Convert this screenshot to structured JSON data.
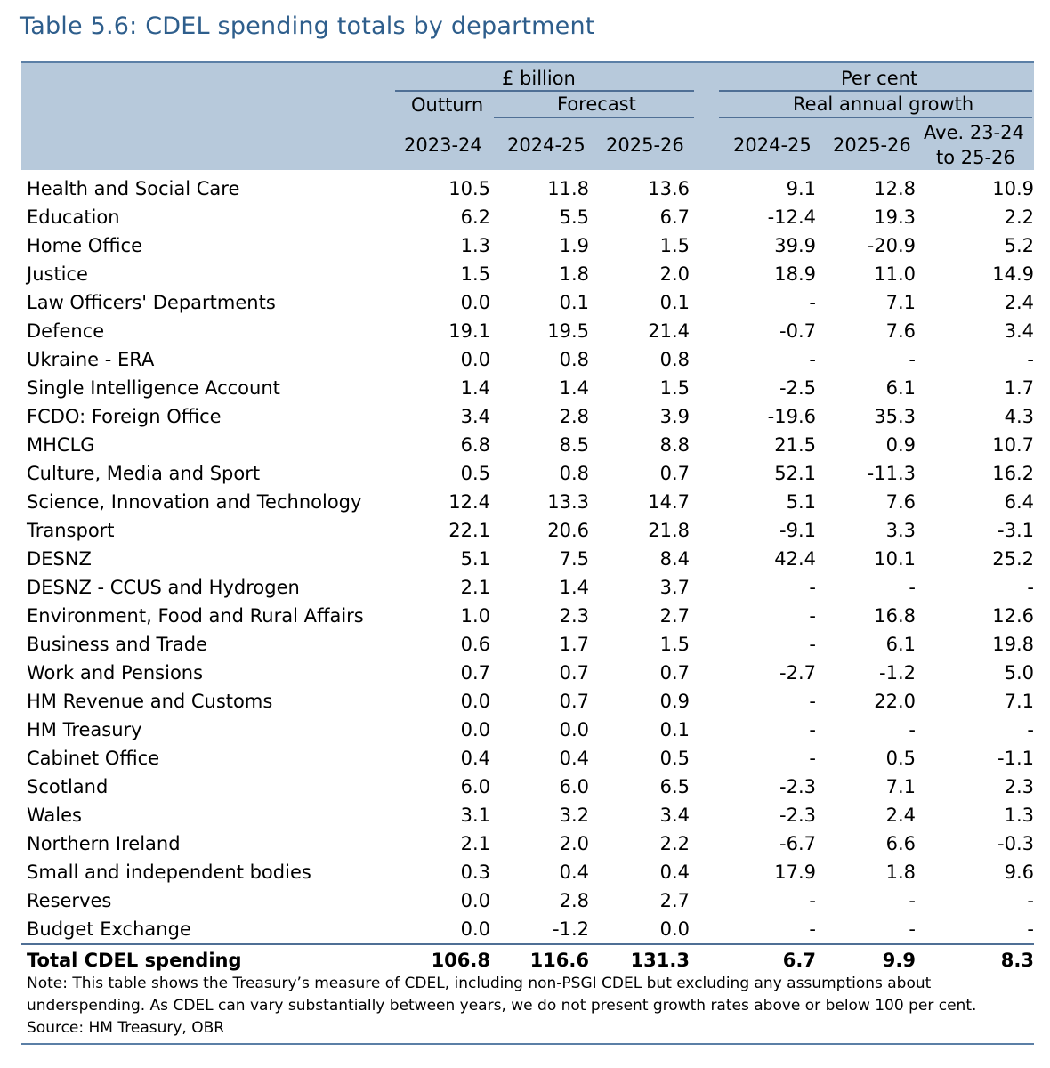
{
  "title": "Table 5.6: CDEL spending totals by department",
  "header": {
    "billion_label": "£ billion",
    "percent_label": "Per cent",
    "outturn_label": "Outturn",
    "forecast_label": "Forecast",
    "real_growth_label": "Real annual growth",
    "col1": "2023-24",
    "col2": "2024-25",
    "col3": "2025-26",
    "col4": "2024-25",
    "col5": "2025-26",
    "col6_line1": "Ave. 23-24",
    "col6_line2": "to 25-26"
  },
  "rows": [
    {
      "dept": "Health and Social Care",
      "v": [
        "10.5",
        "11.8",
        "13.6",
        "9.1",
        "12.8",
        "10.9"
      ]
    },
    {
      "dept": "Education",
      "v": [
        "6.2",
        "5.5",
        "6.7",
        "-12.4",
        "19.3",
        "2.2"
      ]
    },
    {
      "dept": "Home Office",
      "v": [
        "1.3",
        "1.9",
        "1.5",
        "39.9",
        "-20.9",
        "5.2"
      ]
    },
    {
      "dept": "Justice",
      "v": [
        "1.5",
        "1.8",
        "2.0",
        "18.9",
        "11.0",
        "14.9"
      ]
    },
    {
      "dept": "Law Officers' Departments",
      "v": [
        "0.0",
        "0.1",
        "0.1",
        "-",
        "7.1",
        "2.4"
      ]
    },
    {
      "dept": "Defence",
      "v": [
        "19.1",
        "19.5",
        "21.4",
        "-0.7",
        "7.6",
        "3.4"
      ]
    },
    {
      "dept": "Ukraine - ERA",
      "v": [
        "0.0",
        "0.8",
        "0.8",
        "-",
        "-",
        "-"
      ]
    },
    {
      "dept": "Single Intelligence Account",
      "v": [
        "1.4",
        "1.4",
        "1.5",
        "-2.5",
        "6.1",
        "1.7"
      ]
    },
    {
      "dept": "FCDO: Foreign Office",
      "v": [
        "3.4",
        "2.8",
        "3.9",
        "-19.6",
        "35.3",
        "4.3"
      ]
    },
    {
      "dept": "MHCLG",
      "v": [
        "6.8",
        "8.5",
        "8.8",
        "21.5",
        "0.9",
        "10.7"
      ]
    },
    {
      "dept": "Culture, Media and Sport",
      "v": [
        "0.5",
        "0.8",
        "0.7",
        "52.1",
        "-11.3",
        "16.2"
      ]
    },
    {
      "dept": "Science, Innovation and Technology",
      "v": [
        "12.4",
        "13.3",
        "14.7",
        "5.1",
        "7.6",
        "6.4"
      ]
    },
    {
      "dept": "Transport",
      "v": [
        "22.1",
        "20.6",
        "21.8",
        "-9.1",
        "3.3",
        "-3.1"
      ]
    },
    {
      "dept": "DESNZ",
      "v": [
        "5.1",
        "7.5",
        "8.4",
        "42.4",
        "10.1",
        "25.2"
      ]
    },
    {
      "dept": "DESNZ - CCUS and Hydrogen",
      "v": [
        "2.1",
        "1.4",
        "3.7",
        "-",
        "-",
        "-"
      ]
    },
    {
      "dept": "Environment, Food and Rural Affairs",
      "v": [
        "1.0",
        "2.3",
        "2.7",
        "-",
        "16.8",
        "12.6"
      ]
    },
    {
      "dept": "Business and Trade",
      "v": [
        "0.6",
        "1.7",
        "1.5",
        "-",
        "6.1",
        "19.8"
      ]
    },
    {
      "dept": "Work and Pensions",
      "v": [
        "0.7",
        "0.7",
        "0.7",
        "-2.7",
        "-1.2",
        "5.0"
      ]
    },
    {
      "dept": "HM Revenue and Customs",
      "v": [
        "0.0",
        "0.7",
        "0.9",
        "-",
        "22.0",
        "7.1"
      ]
    },
    {
      "dept": "HM Treasury",
      "v": [
        "0.0",
        "0.0",
        "0.1",
        "-",
        "-",
        "-"
      ]
    },
    {
      "dept": "Cabinet Office",
      "v": [
        "0.4",
        "0.4",
        "0.5",
        "-",
        "0.5",
        "-1.1"
      ]
    },
    {
      "dept": "Scotland",
      "v": [
        "6.0",
        "6.0",
        "6.5",
        "-2.3",
        "7.1",
        "2.3"
      ]
    },
    {
      "dept": "Wales",
      "v": [
        "3.1",
        "3.2",
        "3.4",
        "-2.3",
        "2.4",
        "1.3"
      ]
    },
    {
      "dept": "Northern Ireland",
      "v": [
        "2.1",
        "2.0",
        "2.2",
        "-6.7",
        "6.6",
        "-0.3"
      ]
    },
    {
      "dept": "Small and independent bodies",
      "v": [
        "0.3",
        "0.4",
        "0.4",
        "17.9",
        "1.8",
        "9.6"
      ]
    },
    {
      "dept": "Reserves",
      "v": [
        "0.0",
        "2.8",
        "2.7",
        "-",
        "-",
        "-"
      ]
    },
    {
      "dept": "Budget Exchange",
      "v": [
        "0.0",
        "-1.2",
        "0.0",
        "-",
        "-",
        "-"
      ]
    }
  ],
  "total": {
    "dept": "Total CDEL spending",
    "v": [
      "106.8",
      "116.6",
      "131.3",
      "6.7",
      "9.9",
      "8.3"
    ]
  },
  "note": {
    "line1": "Note: This table shows the Treasury’s measure of CDEL, including non-PSGI CDEL but excluding any assumptions about",
    "line2": "underspending. As CDEL can vary substantially between years, we do not present growth rates above or below 100 per cent.",
    "source": "Source: HM Treasury, OBR"
  },
  "colors": {
    "title": "#2e5e8c",
    "header_bg": "#b7c9db",
    "rule": "#4f6f95"
  }
}
